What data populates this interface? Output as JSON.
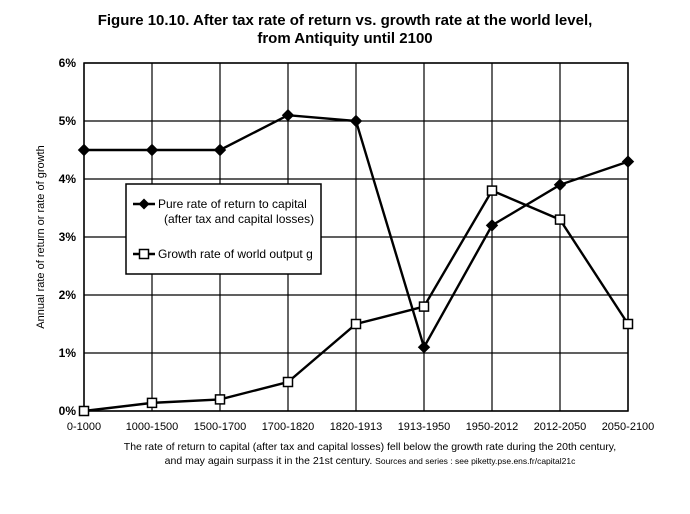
{
  "chart_data": {
    "type": "line",
    "title_line1": "Figure 10.10. After tax rate of return vs. growth rate at the world level,",
    "title_line2": "from Antiquity until 2100",
    "ylabel": "Annual rate of return or rate of growth",
    "xlabel": "",
    "categories": [
      "0-1000",
      "1000-1500",
      "1500-1700",
      "1700-1820",
      "1820-1913",
      "1913-1950",
      "1950-2012",
      "2012-2050",
      "2050-2100"
    ],
    "y_ticks": [
      "0%",
      "1%",
      "2%",
      "3%",
      "4%",
      "5%",
      "6%"
    ],
    "ylim": [
      0,
      6
    ],
    "grid": true,
    "legend_position": "center-left",
    "series": [
      {
        "name": "Pure rate of return to capital",
        "name_line2": "(after tax and capital losses)",
        "marker": "diamond",
        "values": [
          4.5,
          4.5,
          4.5,
          5.1,
          5.0,
          1.1,
          3.2,
          3.9,
          4.3
        ]
      },
      {
        "name": "Growth rate of world output g",
        "marker": "square",
        "values": [
          0.0,
          0.14,
          0.2,
          0.5,
          1.5,
          1.8,
          3.8,
          3.3,
          1.5
        ]
      }
    ],
    "caption_line1": "The rate of return to capital (after tax and capital losses) fell below the growth rate during the 20th century,",
    "caption_line2": "and may again surpass it in the 21st century.",
    "caption_source": "Sources and series : see piketty.pse.ens.fr/capital21c"
  }
}
